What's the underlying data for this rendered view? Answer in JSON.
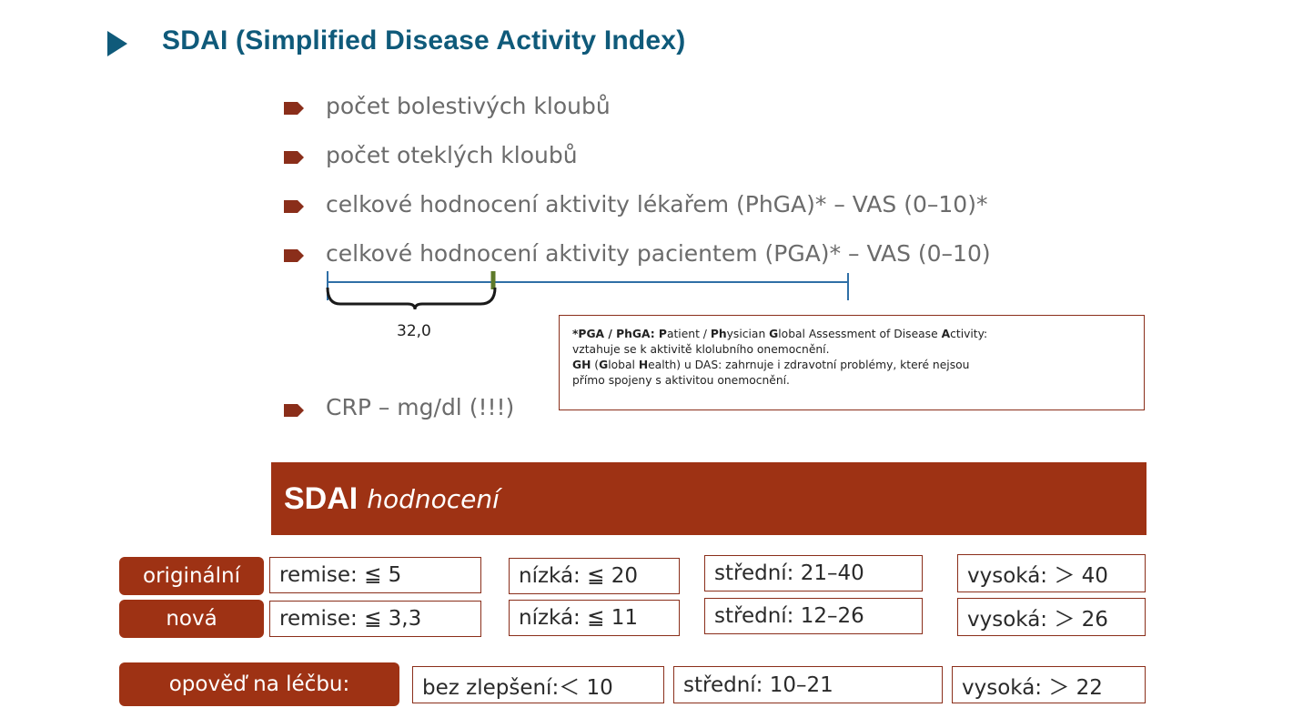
{
  "title": "SDAI (Simplified Disease Activity Index)",
  "bullets": [
    "počet bolestivých kloubů",
    "počet oteklých kloubů",
    "celkové hodnocení aktivity lékařem (PhGA)* – VAS (0–10)*",
    "celkové hodnocení aktivity pacientem (PGA)* – VAS (0–10)",
    "CRP – mg/dl (!!!)"
  ],
  "vas": {
    "marker_label": "32,0"
  },
  "footnote": {
    "line1_bold1": "*PGA / PhGA: P",
    "line1_rest1": "atient / ",
    "line1_bold2": "Ph",
    "line1_rest2": "ysician ",
    "line1_bold3": "G",
    "line1_rest3": "lobal Assessment of Disease ",
    "line1_bold4": "A",
    "line1_rest4": "ctivity:",
    "line2": "vztahuje se k aktivitě klolubního onemocnění.",
    "line3_bold1": "GH",
    "line3_rest1": " (",
    "line3_bold2": "G",
    "line3_rest2": "lobal ",
    "line3_bold3": "H",
    "line3_rest3": "ealth) u DAS: zahrnuje i zdravotní problémy, které nejsou",
    "line4": "přímo spojeny s aktivitou onemocnění."
  },
  "banner": {
    "bold": "SDAI",
    "italic": "hodnocení"
  },
  "rows": {
    "original": {
      "label": "originální",
      "remise": "remise: ≦ 5",
      "nizka": "nízká: ≦ 20",
      "stredni": "střední: 21–40",
      "vysoka": "vysoká: ＞ 40"
    },
    "nova": {
      "label": "nová",
      "remise": "remise: ≦ 3,3",
      "nizka": "nízká: ≦ 11",
      "stredni": "střední: 12–26",
      "vysoka": "vysoká: ＞ 26"
    },
    "odpoved": {
      "label": "opověď na léčbu:",
      "bez": "bez zlepšení:＜ 10",
      "stredni": "střední: 10–21",
      "vysoka": "vysoká: ＞ 22"
    }
  },
  "colors": {
    "accent": "#9e3214",
    "title": "#0f5a7a",
    "scale": "#2f6fa6",
    "marker": "#5e7a2a"
  }
}
